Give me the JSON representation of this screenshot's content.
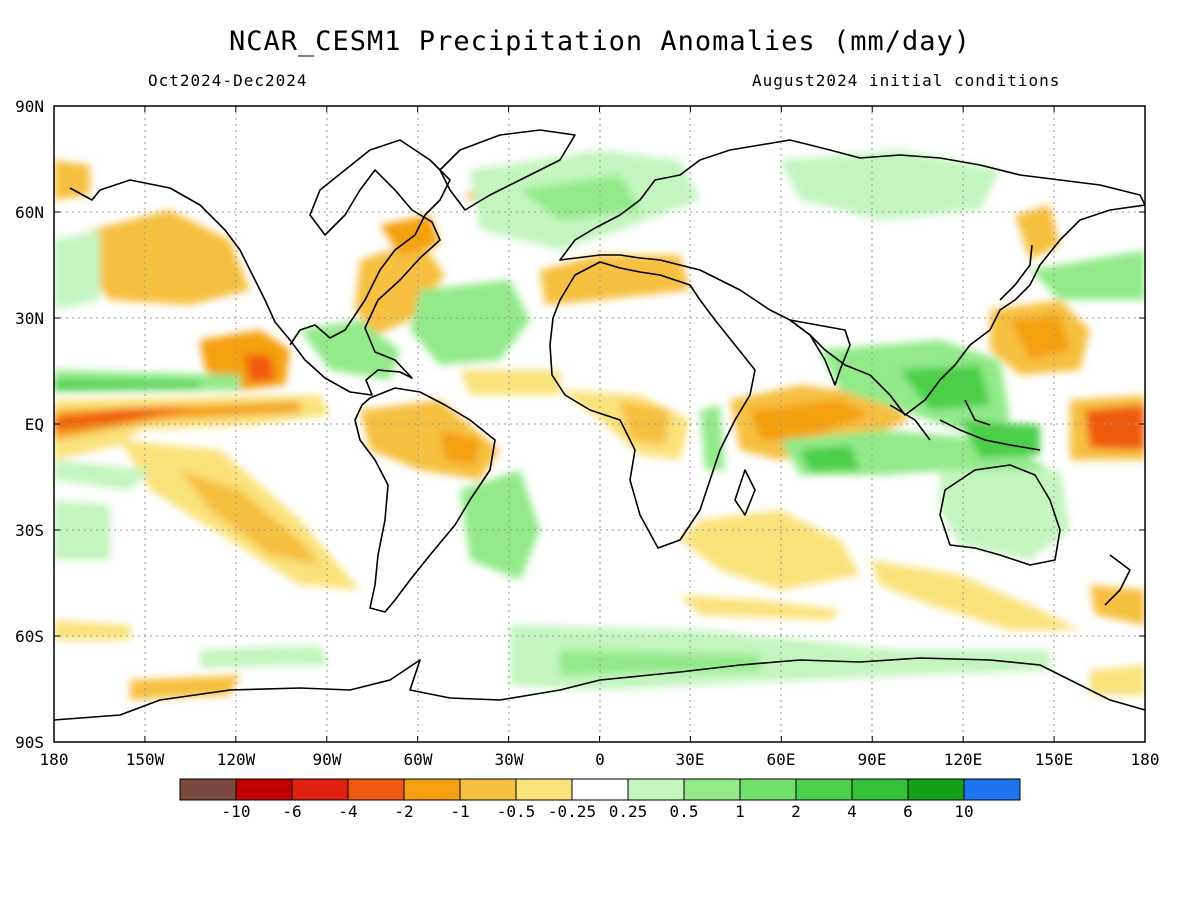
{
  "header": {
    "title": "NCAR_CESM1 Precipitation Anomalies (mm/day)",
    "period": "Oct2024-Dec2024",
    "init": "August2024 initial conditions"
  },
  "lat_labels": [
    "90N",
    "60N",
    "30N",
    "EQ",
    "30S",
    "60S",
    "90S"
  ],
  "lon_labels": [
    "180",
    "150W",
    "120W",
    "90W",
    "60W",
    "30W",
    "0",
    "30E",
    "60E",
    "90E",
    "120E",
    "150E",
    "180"
  ],
  "colorbar": {
    "colors": [
      "#7a4a3e",
      "#c00000",
      "#e02010",
      "#f05a10",
      "#f5a010",
      "#f7c040",
      "#fae27a",
      "#ffffff",
      "#c4f5bf",
      "#92ea89",
      "#6fe06a",
      "#4ccf4a",
      "#36c13a",
      "#14a01a",
      "#1f74ef"
    ],
    "labels": [
      "-10",
      "-6",
      "-4",
      "-2",
      "-1",
      "-0.5",
      "-0.25",
      "0.25",
      "0.5",
      "1",
      "2",
      "4",
      "6",
      "10"
    ]
  }
}
